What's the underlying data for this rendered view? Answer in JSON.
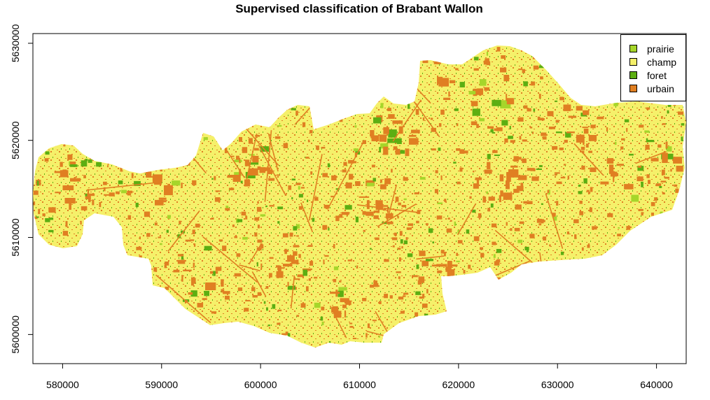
{
  "title": "Supervised classification of Brabant Wallon",
  "axes": {
    "x": {
      "ticks": [
        "580000",
        "590000",
        "600000",
        "610000",
        "620000",
        "630000",
        "640000"
      ],
      "range": [
        577000,
        643000
      ]
    },
    "y": {
      "ticks": [
        "5600000",
        "5610000",
        "5620000",
        "5630000"
      ],
      "range": [
        5597000,
        5631000
      ]
    }
  },
  "legend": {
    "placement": "top-right",
    "items": [
      {
        "label": "prairie",
        "color": "#a6d62a"
      },
      {
        "label": "champ",
        "color": "#f5f06a"
      },
      {
        "label": "foret",
        "color": "#5cae12"
      },
      {
        "label": "urbain",
        "color": "#e07f22"
      }
    ]
  }
}
